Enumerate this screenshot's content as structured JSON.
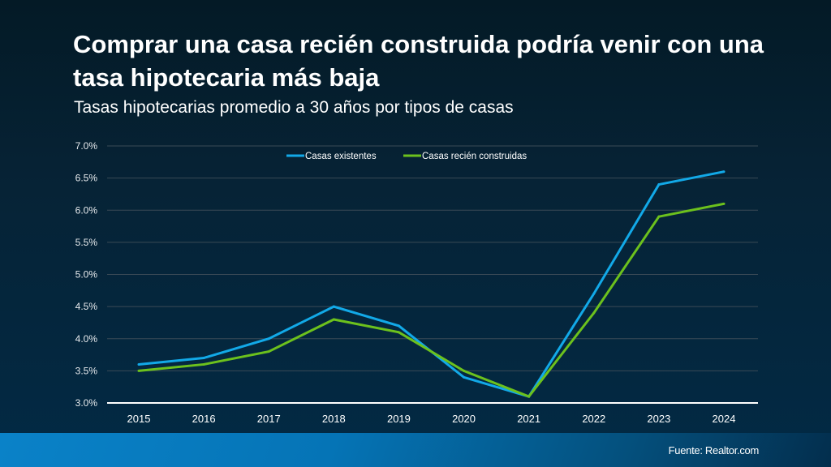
{
  "header": {
    "title": "Comprar una casa recién construida podría venir con una tasa hipotecaria más baja",
    "subtitle": "Tasas hipotecarias promedio a 30 años por tipos de casas"
  },
  "footer": {
    "source": "Fuente: Realtor.com"
  },
  "chart_data": {
    "type": "line",
    "title": "Comprar una casa recién construida podría venir con una tasa hipotecaria más baja",
    "subtitle": "Tasas hipotecarias promedio a 30 años por tipos de casas",
    "xlabel": "",
    "ylabel": "",
    "x": [
      "2015",
      "2016",
      "2017",
      "2018",
      "2019",
      "2020",
      "2021",
      "2022",
      "2023",
      "2024"
    ],
    "ylim": [
      3.0,
      7.0
    ],
    "yticks": [
      3.0,
      3.5,
      4.0,
      4.5,
      5.0,
      5.5,
      6.0,
      6.5,
      7.0
    ],
    "ytick_labels": [
      "3.0%",
      "3.5%",
      "4.0%",
      "4.5%",
      "5.0%",
      "5.5%",
      "6.0%",
      "6.5%",
      "7.0%"
    ],
    "grid": true,
    "legend_position": "top-center",
    "series": [
      {
        "name": "Casas existentes",
        "color": "#12a9e8",
        "values": [
          3.6,
          3.7,
          4.0,
          4.5,
          4.2,
          3.4,
          3.1,
          4.7,
          6.4,
          6.6
        ]
      },
      {
        "name": "Casas recién construidas",
        "color": "#6cc11d",
        "values": [
          3.5,
          3.6,
          3.8,
          4.3,
          4.1,
          3.5,
          3.1,
          4.4,
          5.9,
          6.1
        ]
      }
    ]
  }
}
